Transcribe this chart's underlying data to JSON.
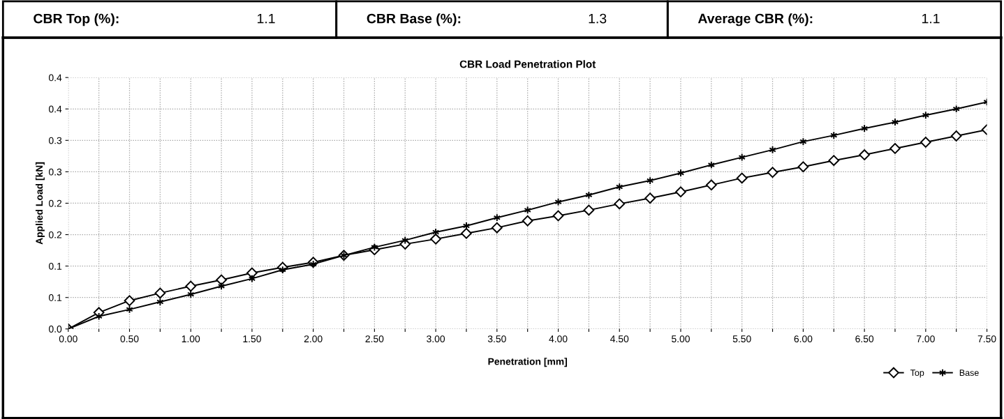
{
  "chart_data": {
    "type": "line",
    "title": "CBR Load Penetration Plot",
    "xlabel": "Penetration [mm]",
    "ylabel": "Applied Load [kN]",
    "annotations": [
      "CBR Top (%):",
      "1.1",
      "CBR Base (%):",
      "1.3",
      "Average CBR (%):",
      "1.1"
    ],
    "x": [
      0,
      0.25,
      0.5,
      0.75,
      1.0,
      1.25,
      1.5,
      1.75,
      2.0,
      2.25,
      2.5,
      2.75,
      3.0,
      3.25,
      3.5,
      3.75,
      4.0,
      4.25,
      4.5,
      4.75,
      5.0,
      5.25,
      5.5,
      5.75,
      6.0,
      6.25,
      6.5,
      6.75,
      7.0,
      7.25,
      7.5
    ],
    "series": [
      {
        "name": "Top",
        "color": "#000000",
        "marker": "diamond",
        "values": [
          0,
          0.026,
          0.045,
          0.057,
          0.068,
          0.078,
          0.089,
          0.098,
          0.106,
          0.117,
          0.126,
          0.135,
          0.143,
          0.152,
          0.161,
          0.172,
          0.18,
          0.189,
          0.199,
          0.208,
          0.218,
          0.229,
          0.24,
          0.249,
          0.258,
          0.268,
          0.277,
          0.287,
          0.297,
          0.307,
          0.317
        ]
      },
      {
        "name": "Base",
        "color": "#000000",
        "marker": "cross",
        "values": [
          0,
          0.02,
          0.031,
          0.043,
          0.055,
          0.068,
          0.08,
          0.094,
          0.103,
          0.117,
          0.13,
          0.141,
          0.154,
          0.164,
          0.177,
          0.189,
          0.202,
          0.213,
          0.226,
          0.236,
          0.248,
          0.261,
          0.273,
          0.285,
          0.298,
          0.308,
          0.319,
          0.329,
          0.34,
          0.35,
          0.361
        ]
      }
    ],
    "xlim": [
      0,
      7.5
    ],
    "xticks": [
      {
        "value": 0,
        "label": "0.00"
      },
      {
        "value": 0.25,
        "label": null
      },
      {
        "value": 0.5,
        "label": "0.50"
      },
      {
        "value": 0.75,
        "label": null
      },
      {
        "value": 1,
        "label": "1.00"
      },
      {
        "value": 1.25,
        "label": null
      },
      {
        "value": 1.5,
        "label": "1.50"
      },
      {
        "value": 1.75,
        "label": null
      },
      {
        "value": 2,
        "label": "2.00"
      },
      {
        "value": 2.25,
        "label": null
      },
      {
        "value": 2.5,
        "label": "2.50"
      },
      {
        "value": 2.75,
        "label": null
      },
      {
        "value": 3,
        "label": "3.00"
      },
      {
        "value": 3.25,
        "label": null
      },
      {
        "value": 3.5,
        "label": "3.50"
      },
      {
        "value": 3.75,
        "label": null
      },
      {
        "value": 4,
        "label": "4.00"
      },
      {
        "value": 4.25,
        "label": null
      },
      {
        "value": 4.5,
        "label": "4.50"
      },
      {
        "value": 4.75,
        "label": null
      },
      {
        "value": 5,
        "label": "5.00"
      },
      {
        "value": 5.25,
        "label": null
      },
      {
        "value": 5.5,
        "label": "5.50"
      },
      {
        "value": 5.75,
        "label": null
      },
      {
        "value": 6,
        "label": "6.00"
      },
      {
        "value": 6.25,
        "label": null
      },
      {
        "value": 6.5,
        "label": "6.50"
      },
      {
        "value": 6.75,
        "label": null
      },
      {
        "value": 7,
        "label": "7.00"
      },
      {
        "value": 7.25,
        "label": null
      },
      {
        "value": 7.5,
        "label": "7.50"
      }
    ],
    "ylim": [
      0,
      0.4
    ],
    "yticks": [
      {
        "value": 0,
        "label": "0.0"
      },
      {
        "value": 0.05,
        "label": "0.1"
      },
      {
        "value": 0.1,
        "label": "0.1"
      },
      {
        "value": 0.15,
        "label": "0.2"
      },
      {
        "value": 0.2,
        "label": "0.2"
      },
      {
        "value": 0.25,
        "label": "0.3"
      },
      {
        "value": 0.3,
        "label": "0.3"
      },
      {
        "value": 0.35,
        "label": "0.4"
      },
      {
        "value": 0.4,
        "label": "0.4"
      }
    ],
    "grid": true,
    "legend": "bottom right",
    "line_style": "solid"
  }
}
